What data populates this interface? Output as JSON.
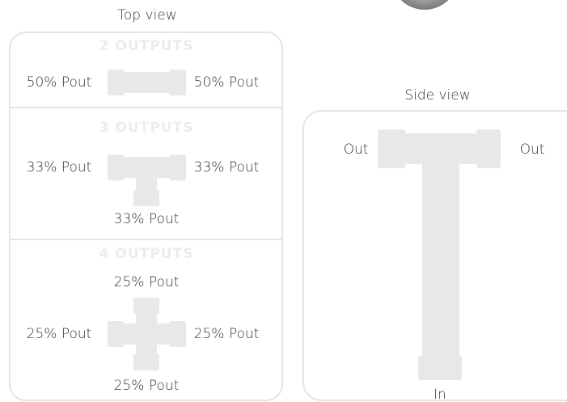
{
  "top_view": {
    "title": "Top view",
    "sections": [
      {
        "heading": "2 OUTPUTS",
        "labels": [
          "50% Pout",
          "50% Pout"
        ]
      },
      {
        "heading": "3 OUTPUTS",
        "labels": [
          "33% Pout",
          "33% Pout",
          "33% Pout"
        ]
      },
      {
        "heading": "4 OUTPUTS",
        "labels": [
          "25% Pout",
          "25% Pout",
          "25% Pout",
          "25% Pout"
        ]
      }
    ]
  },
  "side_view": {
    "title": "Side view",
    "out_left": "Out",
    "out_right": "Out",
    "input": "In"
  }
}
